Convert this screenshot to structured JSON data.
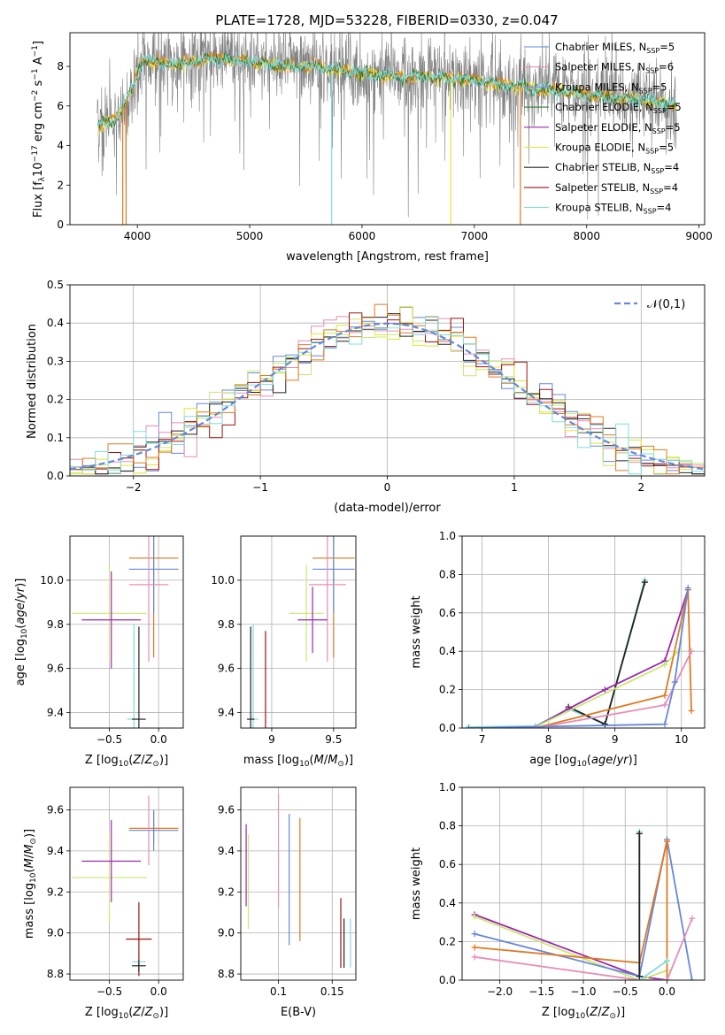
{
  "title": "PLATE=1728, MJD=53228, FIBERID=0330, z=0.047",
  "colors": {
    "Chabrier MILES": "#6488dc",
    "Salpeter MILES": "#e88cb8",
    "Kroupa MILES": "#8c8cf0",
    "Chabrier ELODIE": "#2e7d32",
    "Salpeter ELODIE": "#9c27b0",
    "Kroupa ELODIE": "#e4e433",
    "Chabrier STELIB": "#222222",
    "Salpeter STELIB": "#a01010",
    "Kroupa STELIB": "#7fdde0",
    "orange": "#e07a20",
    "lightgreen": "#c8e870",
    "data": "#808080",
    "normal": "#6488dc"
  },
  "chart_data": [
    {
      "id": "spectrum",
      "type": "line",
      "xlabel": "wavelength [Angstrom, rest frame]",
      "ylabel": "Flux [f_λ 10^-17 erg cm^-2 s^-1 A^-1]",
      "xlim": [
        3400,
        9050
      ],
      "ylim": [
        0,
        9.7
      ],
      "xticks": [
        4000,
        5000,
        6000,
        7000,
        8000,
        9000
      ],
      "yticks": [
        0,
        2,
        4,
        6,
        8
      ],
      "legend_position": "right",
      "legend": [
        {
          "label": "Chabrier MILES, N",
          "sub": "SSP",
          "suffix": "=5",
          "color": "#6488dc"
        },
        {
          "label": "Salpeter MILES, N",
          "sub": "SSP",
          "suffix": "=6",
          "color": "#e88cb8"
        },
        {
          "label": "Kroupa MILES, N",
          "sub": "SSP",
          "suffix": "=5",
          "color": "#8c8cf0"
        },
        {
          "label": "Chabrier ELODIE, N",
          "sub": "SSP",
          "suffix": "=5",
          "color": "#2e7d32"
        },
        {
          "label": "Salpeter ELODIE, N",
          "sub": "SSP",
          "suffix": "=5",
          "color": "#9c27b0"
        },
        {
          "label": "Kroupa ELODIE, N",
          "sub": "SSP",
          "suffix": "=5",
          "color": "#e4e433"
        },
        {
          "label": "Chabrier STELIB, N",
          "sub": "SSP",
          "suffix": "=4",
          "color": "#222222"
        },
        {
          "label": "Salpeter STELIB, N",
          "sub": "SSP",
          "suffix": "=4",
          "color": "#a01010"
        },
        {
          "label": "Kroupa STELIB, N",
          "sub": "SSP",
          "suffix": "=4",
          "color": "#7fdde0"
        }
      ],
      "continuum": [
        [
          3650,
          5.0
        ],
        [
          3800,
          5.3
        ],
        [
          3950,
          6.8
        ],
        [
          4050,
          8.4
        ],
        [
          4200,
          8.1
        ],
        [
          4400,
          8.2
        ],
        [
          4700,
          8.4
        ],
        [
          5000,
          8.3
        ],
        [
          5300,
          8.0
        ],
        [
          5600,
          8.0
        ],
        [
          6000,
          7.6
        ],
        [
          6300,
          7.5
        ],
        [
          6700,
          7.4
        ],
        [
          7000,
          7.3
        ],
        [
          7500,
          6.9
        ],
        [
          8000,
          6.6
        ],
        [
          8500,
          6.3
        ],
        [
          8800,
          6.0
        ]
      ],
      "model_dips": [
        {
          "x": 3900,
          "color": "#e07a20"
        },
        {
          "x": 3870,
          "color": "#e07a20"
        },
        {
          "x": 5730,
          "color": "#7fdde0"
        },
        {
          "x": 6790,
          "color": "#e4e433"
        },
        {
          "x": 7410,
          "color": "#e07a20"
        }
      ]
    },
    {
      "id": "residuals",
      "type": "line",
      "xlabel": "(data-model)/error",
      "ylabel": "Normed distribution",
      "xlim": [
        -2.5,
        2.5
      ],
      "ylim": [
        0,
        0.5
      ],
      "xticks": [
        -2,
        -1,
        0,
        1,
        2
      ],
      "yticks": [
        0.0,
        0.1,
        0.2,
        0.3,
        0.4,
        0.5
      ],
      "legend_position": "top-right",
      "legend": [
        {
          "label": "𝒩(0,1)",
          "color": "#6488dc",
          "style": "dashed"
        }
      ],
      "bins": [
        -2.5,
        -2.4,
        -2.3,
        -2.2,
        -2.1,
        -2.0,
        -1.9,
        -1.8,
        -1.7,
        -1.6,
        -1.5,
        -1.4,
        -1.3,
        -1.2,
        -1.1,
        -1.0,
        -0.9,
        -0.8,
        -0.7,
        -0.6,
        -0.5,
        -0.4,
        -0.3,
        -0.2,
        -0.1,
        0.0,
        0.1,
        0.2,
        0.3,
        0.4,
        0.5,
        0.6,
        0.7,
        0.8,
        0.9,
        1.0,
        1.1,
        1.2,
        1.3,
        1.4,
        1.5,
        1.6,
        1.7,
        1.8,
        1.9,
        2.0,
        2.1,
        2.2,
        2.3,
        2.4
      ]
    },
    {
      "id": "age_vs_Z",
      "type": "scatter",
      "xlabel": "Z [log10(Z/Z⊙)]",
      "ylabel": "age [log10(age/yr)]",
      "xlim": [
        -0.9,
        0.25
      ],
      "ylim": [
        9.33,
        10.2
      ],
      "xticks": [
        -0.5,
        0.0
      ],
      "xticklabels": [
        "−0.5",
        "0.0"
      ],
      "yticks": [
        9.4,
        9.6,
        9.8,
        10.0
      ],
      "points": [
        {
          "x": -0.05,
          "y": 10.1,
          "xerr": 0.25,
          "yerr": 0.45,
          "color": "#e07a20"
        },
        {
          "x": -0.05,
          "y": 10.05,
          "xerr": 0.25,
          "yerr": 0.2,
          "color": "#6488dc"
        },
        {
          "x": -0.1,
          "y": 9.98,
          "xerr": 0.2,
          "yerr": 0.35,
          "color": "#e88cb8"
        },
        {
          "x": -0.5,
          "y": 9.85,
          "xerr": 0.38,
          "yerr": 0.22,
          "color": "#c8e870"
        },
        {
          "x": -0.48,
          "y": 9.82,
          "xerr": 0.3,
          "yerr": 0.22,
          "color": "#9c27b0"
        },
        {
          "x": -0.25,
          "y": 9.37,
          "xerr": 0.07,
          "yerr": 0.43,
          "color": "#7fdde0"
        },
        {
          "x": -0.2,
          "y": 9.37,
          "xerr": 0.07,
          "yerr": 0.42,
          "color": "#222222"
        }
      ]
    },
    {
      "id": "age_vs_mass",
      "type": "scatter",
      "xlabel": "mass [log10(M/M⊙)]",
      "ylabel": "",
      "xlim": [
        8.75,
        9.68
      ],
      "ylim": [
        9.33,
        10.2
      ],
      "xticks": [
        9.0,
        9.5
      ],
      "yticks": [
        9.4,
        9.6,
        9.8,
        10.0
      ],
      "points": [
        {
          "x": 9.5,
          "y": 10.1,
          "xerr": 0.17,
          "yerr": 0.45,
          "color": "#e07a20"
        },
        {
          "x": 9.5,
          "y": 10.05,
          "xerr": 0.17,
          "yerr": 0.2,
          "color": "#6488dc"
        },
        {
          "x": 9.45,
          "y": 9.98,
          "xerr": 0.15,
          "yerr": 0.35,
          "color": "#e88cb8"
        },
        {
          "x": 9.28,
          "y": 9.85,
          "xerr": 0.14,
          "yerr": 0.22,
          "color": "#c8e870"
        },
        {
          "x": 9.33,
          "y": 9.82,
          "xerr": 0.12,
          "yerr": 0.15,
          "color": "#9c27b0"
        },
        {
          "x": 8.85,
          "y": 9.37,
          "xerr": 0.04,
          "yerr": 0.43,
          "color": "#7fdde0"
        },
        {
          "x": 8.83,
          "y": 9.37,
          "xerr": 0.03,
          "yerr": 0.42,
          "color": "#222222"
        },
        {
          "x": 8.95,
          "y": 9.37,
          "xerr": 0.0,
          "yerr": 0.4,
          "color": "#a01010"
        }
      ]
    },
    {
      "id": "mass_weight_vs_age",
      "type": "line",
      "xlabel": "age [log10(age/yr)]",
      "ylabel": "mass weight",
      "xlim": [
        6.7,
        10.35
      ],
      "ylim": [
        0,
        1.0
      ],
      "xticks": [
        7,
        8,
        9,
        10
      ],
      "yticks": [
        0.0,
        0.2,
        0.4,
        0.6,
        0.8,
        1.0
      ],
      "series": [
        {
          "color": "#7fdde0",
          "x": [
            6.8,
            7.8,
            8.3,
            8.85,
            9.45
          ],
          "y": [
            0.005,
            0.01,
            0.1,
            0.02,
            0.77
          ]
        },
        {
          "color": "#222222",
          "x": [
            8.3,
            8.85,
            9.45
          ],
          "y": [
            0.11,
            0.02,
            0.76
          ]
        },
        {
          "color": "#9c27b0",
          "x": [
            7.8,
            8.3,
            8.85,
            9.75,
            10.1
          ],
          "y": [
            0.005,
            0.1,
            0.2,
            0.35,
            0.72
          ]
        },
        {
          "color": "#c8e870",
          "x": [
            6.8,
            7.8,
            9.75,
            9.95
          ],
          "y": [
            0.0,
            0.005,
            0.33,
            0.4
          ]
        },
        {
          "color": "#e07a20",
          "x": [
            7.8,
            9.75,
            10.1,
            10.15
          ],
          "y": [
            0.0,
            0.17,
            0.72,
            0.09
          ]
        },
        {
          "color": "#e88cb8",
          "x": [
            7.8,
            9.75,
            10.15
          ],
          "y": [
            0.0,
            0.12,
            0.4
          ]
        },
        {
          "color": "#6488dc",
          "x": [
            6.8,
            9.75,
            9.9,
            10.1
          ],
          "y": [
            0.0,
            0.02,
            0.24,
            0.73
          ]
        }
      ]
    },
    {
      "id": "mass_vs_Z",
      "type": "scatter",
      "xlabel": "Z [log10(Z/Z⊙)]",
      "ylabel": "mass [log10(M/M⊙)]",
      "xlim": [
        -0.9,
        0.25
      ],
      "ylim": [
        8.77,
        9.71
      ],
      "xticks": [
        -0.5,
        0.0
      ],
      "xticklabels": [
        "−0.5",
        "0.0"
      ],
      "yticks": [
        8.8,
        9.0,
        9.2,
        9.4,
        9.6
      ],
      "points": [
        {
          "x": -0.05,
          "y": 9.51,
          "xerr": 0.25,
          "yerr": 0.08,
          "color": "#e07a20"
        },
        {
          "x": -0.05,
          "y": 9.5,
          "xerr": 0.25,
          "yerr": 0.1,
          "color": "#6488dc"
        },
        {
          "x": -0.1,
          "y": 9.5,
          "xerr": 0.0,
          "yerr": 0.17,
          "color": "#e88cb8"
        },
        {
          "x": -0.5,
          "y": 9.27,
          "xerr": 0.38,
          "yerr": 0.22,
          "color": "#c8e870"
        },
        {
          "x": -0.48,
          "y": 9.35,
          "xerr": 0.3,
          "yerr": 0.2,
          "color": "#9c27b0"
        },
        {
          "x": -0.2,
          "y": 8.97,
          "xerr": 0.13,
          "yerr": 0.18,
          "color": "#a01010"
        },
        {
          "x": -0.2,
          "y": 8.86,
          "xerr": 0.07,
          "yerr": 0.0,
          "color": "#7fdde0"
        },
        {
          "x": -0.2,
          "y": 8.84,
          "xerr": 0.07,
          "yerr": 0.03,
          "color": "#222222"
        }
      ]
    },
    {
      "id": "mass_vs_EBV",
      "type": "scatter",
      "xlabel": "E(B-V)",
      "ylabel": "",
      "xlim": [
        0.065,
        0.172
      ],
      "ylim": [
        8.77,
        9.71
      ],
      "xticks": [
        0.1,
        0.15
      ],
      "yticks": [
        8.8,
        9.0,
        9.2,
        9.4,
        9.6
      ],
      "points": [
        {
          "x": 0.07,
          "y": 9.33,
          "yerr": 0.2,
          "color": "#9c27b0"
        },
        {
          "x": 0.072,
          "y": 9.25,
          "yerr": 0.23,
          "color": "#c8e870"
        },
        {
          "x": 0.1,
          "y": 9.4,
          "yerr": 0.28,
          "color": "#e88cb8"
        },
        {
          "x": 0.11,
          "y": 9.26,
          "yerr": 0.32,
          "color": "#6488dc"
        },
        {
          "x": 0.12,
          "y": 9.26,
          "yerr": 0.3,
          "color": "#e07a20"
        },
        {
          "x": 0.158,
          "y": 9.0,
          "yerr": 0.17,
          "color": "#a01010"
        },
        {
          "x": 0.161,
          "y": 8.95,
          "yerr": 0.12,
          "color": "#222222"
        },
        {
          "x": 0.167,
          "y": 8.95,
          "yerr": 0.12,
          "color": "#7fdde0"
        }
      ]
    },
    {
      "id": "mass_weight_vs_Z",
      "type": "line",
      "xlabel": "Z [log10(Z/Z⊙)]",
      "ylabel": "mass weight",
      "xlim": [
        -2.45,
        0.45
      ],
      "ylim": [
        0,
        1.0
      ],
      "xticks": [
        -2.0,
        -1.5,
        -1.0,
        -0.5,
        0.0
      ],
      "xticklabels": [
        "−2.0",
        "−1.5",
        "−1.0",
        "−0.5",
        "0.0"
      ],
      "yticks": [
        0.0,
        0.2,
        0.4,
        0.6,
        0.8,
        1.0
      ],
      "series": [
        {
          "color": "#9c27b0",
          "x": [
            -2.3,
            -0.33,
            0.0
          ],
          "y": [
            0.34,
            0.02,
            0.0
          ]
        },
        {
          "color": "#c8e870",
          "x": [
            -2.3,
            -0.33,
            0.0
          ],
          "y": [
            0.33,
            0.0,
            0.05
          ]
        },
        {
          "color": "#6488dc",
          "x": [
            -2.3,
            -0.33,
            0.0,
            0.3
          ],
          "y": [
            0.24,
            0.02,
            0.73,
            0.0
          ]
        },
        {
          "color": "#e07a20",
          "x": [
            -2.3,
            -0.33,
            0.0,
            0.0
          ],
          "y": [
            0.17,
            0.09,
            0.72,
            0.0
          ]
        },
        {
          "color": "#e88cb8",
          "x": [
            -2.3,
            -0.33,
            0.0,
            0.3
          ],
          "y": [
            0.12,
            0.0,
            0.0,
            0.32
          ]
        },
        {
          "color": "#7fdde0",
          "x": [
            -0.33,
            -0.33,
            0.0
          ],
          "y": [
            0.77,
            0.0,
            0.1
          ]
        },
        {
          "color": "#222222",
          "x": [
            -0.33,
            -0.33
          ],
          "y": [
            0.76,
            0.02
          ]
        }
      ]
    }
  ]
}
